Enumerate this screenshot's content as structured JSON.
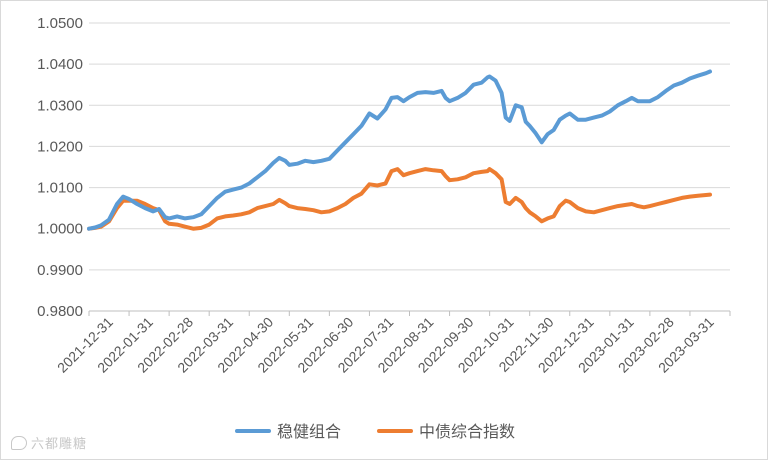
{
  "chart_data": {
    "type": "line",
    "title": "",
    "xlabel": "",
    "ylabel": "",
    "ylim": [
      0.98,
      1.05
    ],
    "yticks": [
      "1.0500",
      "1.0400",
      "1.0300",
      "1.0200",
      "1.0100",
      "1.0000",
      "0.9900",
      "0.9800"
    ],
    "x_ticks": [
      "2021-12-31",
      "2022-01-31",
      "2022-02-28",
      "2022-03-31",
      "2022-04-30",
      "2022-05-31",
      "2022-06-30",
      "2022-07-31",
      "2022-08-31",
      "2022-09-30",
      "2022-10-31",
      "2022-11-30",
      "2022-12-31",
      "2023-01-31",
      "2023-02-28",
      "2023-03-31"
    ],
    "grid": true,
    "legend_position": "bottom",
    "series": [
      {
        "name": "稳健组合",
        "color": "#5b9bd5",
        "points": [
          [
            0,
            1.0
          ],
          [
            0.15,
            1.0003
          ],
          [
            0.3,
            1.0008
          ],
          [
            0.5,
            1.0022
          ],
          [
            0.7,
            1.006
          ],
          [
            0.85,
            1.0078
          ],
          [
            1.0,
            1.0072
          ],
          [
            1.2,
            1.006
          ],
          [
            1.4,
            1.005
          ],
          [
            1.6,
            1.0042
          ],
          [
            1.75,
            1.0048
          ],
          [
            1.9,
            1.0028
          ],
          [
            2.0,
            1.0025
          ],
          [
            2.2,
            1.003
          ],
          [
            2.4,
            1.0025
          ],
          [
            2.6,
            1.0028
          ],
          [
            2.8,
            1.0035
          ],
          [
            3.0,
            1.0055
          ],
          [
            3.2,
            1.0075
          ],
          [
            3.4,
            1.009
          ],
          [
            3.6,
            1.0095
          ],
          [
            3.8,
            1.01
          ],
          [
            4.0,
            1.011
          ],
          [
            4.2,
            1.0125
          ],
          [
            4.4,
            1.014
          ],
          [
            4.6,
            1.016
          ],
          [
            4.75,
            1.0172
          ],
          [
            4.9,
            1.0165
          ],
          [
            5.0,
            1.0155
          ],
          [
            5.2,
            1.0158
          ],
          [
            5.4,
            1.0165
          ],
          [
            5.6,
            1.0162
          ],
          [
            5.8,
            1.0165
          ],
          [
            6.0,
            1.017
          ],
          [
            6.2,
            1.019
          ],
          [
            6.4,
            1.021
          ],
          [
            6.6,
            1.023
          ],
          [
            6.8,
            1.025
          ],
          [
            7.0,
            1.028
          ],
          [
            7.2,
            1.0268
          ],
          [
            7.4,
            1.029
          ],
          [
            7.55,
            1.0318
          ],
          [
            7.7,
            1.032
          ],
          [
            7.85,
            1.031
          ],
          [
            8.0,
            1.032
          ],
          [
            8.2,
            1.033
          ],
          [
            8.4,
            1.0332
          ],
          [
            8.6,
            1.033
          ],
          [
            8.8,
            1.0335
          ],
          [
            8.9,
            1.0318
          ],
          [
            9.0,
            1.031
          ],
          [
            9.2,
            1.0318
          ],
          [
            9.4,
            1.033
          ],
          [
            9.6,
            1.035
          ],
          [
            9.8,
            1.0355
          ],
          [
            9.95,
            1.0368
          ],
          [
            10.0,
            1.037
          ],
          [
            10.15,
            1.036
          ],
          [
            10.3,
            1.033
          ],
          [
            10.4,
            1.027
          ],
          [
            10.5,
            1.0262
          ],
          [
            10.65,
            1.03
          ],
          [
            10.8,
            1.0295
          ],
          [
            10.9,
            1.026
          ],
          [
            11.0,
            1.025
          ],
          [
            11.15,
            1.0232
          ],
          [
            11.3,
            1.021
          ],
          [
            11.45,
            1.023
          ],
          [
            11.6,
            1.024
          ],
          [
            11.75,
            1.0265
          ],
          [
            11.9,
            1.0275
          ],
          [
            12.0,
            1.028
          ],
          [
            12.2,
            1.0265
          ],
          [
            12.4,
            1.0265
          ],
          [
            12.6,
            1.027
          ],
          [
            12.8,
            1.0275
          ],
          [
            13.0,
            1.0285
          ],
          [
            13.2,
            1.03
          ],
          [
            13.4,
            1.031
          ],
          [
            13.55,
            1.0318
          ],
          [
            13.7,
            1.031
          ],
          [
            13.85,
            1.031
          ],
          [
            14.0,
            1.031
          ],
          [
            14.2,
            1.032
          ],
          [
            14.4,
            1.0335
          ],
          [
            14.6,
            1.0348
          ],
          [
            14.8,
            1.0355
          ],
          [
            15.0,
            1.0365
          ],
          [
            15.2,
            1.0372
          ],
          [
            15.4,
            1.0378
          ],
          [
            15.5,
            1.0382
          ]
        ]
      },
      {
        "name": "中债综合指数",
        "color": "#ed7d31",
        "points": [
          [
            0,
            1.0
          ],
          [
            0.15,
            1.0002
          ],
          [
            0.3,
            1.0005
          ],
          [
            0.5,
            1.0018
          ],
          [
            0.7,
            1.005
          ],
          [
            0.85,
            1.0068
          ],
          [
            1.0,
            1.0068
          ],
          [
            1.2,
            1.0068
          ],
          [
            1.4,
            1.006
          ],
          [
            1.6,
            1.005
          ],
          [
            1.75,
            1.0045
          ],
          [
            1.9,
            1.0018
          ],
          [
            2.0,
            1.0012
          ],
          [
            2.2,
            1.001
          ],
          [
            2.4,
            1.0005
          ],
          [
            2.6,
            1.0
          ],
          [
            2.8,
            1.0002
          ],
          [
            3.0,
            1.001
          ],
          [
            3.2,
            1.0025
          ],
          [
            3.4,
            1.003
          ],
          [
            3.6,
            1.0032
          ],
          [
            3.8,
            1.0035
          ],
          [
            4.0,
            1.004
          ],
          [
            4.2,
            1.005
          ],
          [
            4.4,
            1.0055
          ],
          [
            4.6,
            1.006
          ],
          [
            4.75,
            1.007
          ],
          [
            4.9,
            1.0062
          ],
          [
            5.0,
            1.0055
          ],
          [
            5.2,
            1.005
          ],
          [
            5.4,
            1.0048
          ],
          [
            5.6,
            1.0045
          ],
          [
            5.8,
            1.004
          ],
          [
            6.0,
            1.0042
          ],
          [
            6.2,
            1.005
          ],
          [
            6.4,
            1.006
          ],
          [
            6.6,
            1.0075
          ],
          [
            6.8,
            1.0085
          ],
          [
            7.0,
            1.0108
          ],
          [
            7.2,
            1.0105
          ],
          [
            7.4,
            1.011
          ],
          [
            7.55,
            1.014
          ],
          [
            7.7,
            1.0145
          ],
          [
            7.85,
            1.013
          ],
          [
            8.0,
            1.0135
          ],
          [
            8.2,
            1.014
          ],
          [
            8.4,
            1.0145
          ],
          [
            8.6,
            1.0142
          ],
          [
            8.8,
            1.014
          ],
          [
            8.9,
            1.0128
          ],
          [
            9.0,
            1.0118
          ],
          [
            9.2,
            1.012
          ],
          [
            9.4,
            1.0125
          ],
          [
            9.6,
            1.0135
          ],
          [
            9.8,
            1.0138
          ],
          [
            9.95,
            1.014
          ],
          [
            10.0,
            1.0145
          ],
          [
            10.15,
            1.0135
          ],
          [
            10.3,
            1.012
          ],
          [
            10.4,
            1.0065
          ],
          [
            10.5,
            1.006
          ],
          [
            10.65,
            1.0075
          ],
          [
            10.8,
            1.0065
          ],
          [
            10.9,
            1.005
          ],
          [
            11.0,
            1.004
          ],
          [
            11.15,
            1.003
          ],
          [
            11.3,
            1.0018
          ],
          [
            11.45,
            1.0025
          ],
          [
            11.6,
            1.003
          ],
          [
            11.75,
            1.0055
          ],
          [
            11.9,
            1.0068
          ],
          [
            12.0,
            1.0065
          ],
          [
            12.2,
            1.005
          ],
          [
            12.4,
            1.0042
          ],
          [
            12.6,
            1.004
          ],
          [
            12.8,
            1.0045
          ],
          [
            13.0,
            1.005
          ],
          [
            13.2,
            1.0055
          ],
          [
            13.4,
            1.0058
          ],
          [
            13.55,
            1.006
          ],
          [
            13.7,
            1.0055
          ],
          [
            13.85,
            1.0052
          ],
          [
            14.0,
            1.0055
          ],
          [
            14.2,
            1.006
          ],
          [
            14.4,
            1.0065
          ],
          [
            14.6,
            1.007
          ],
          [
            14.8,
            1.0075
          ],
          [
            15.0,
            1.0078
          ],
          [
            15.2,
            1.008
          ],
          [
            15.4,
            1.0082
          ],
          [
            15.5,
            1.0083
          ]
        ]
      }
    ]
  },
  "watermark": "六都雕糖"
}
